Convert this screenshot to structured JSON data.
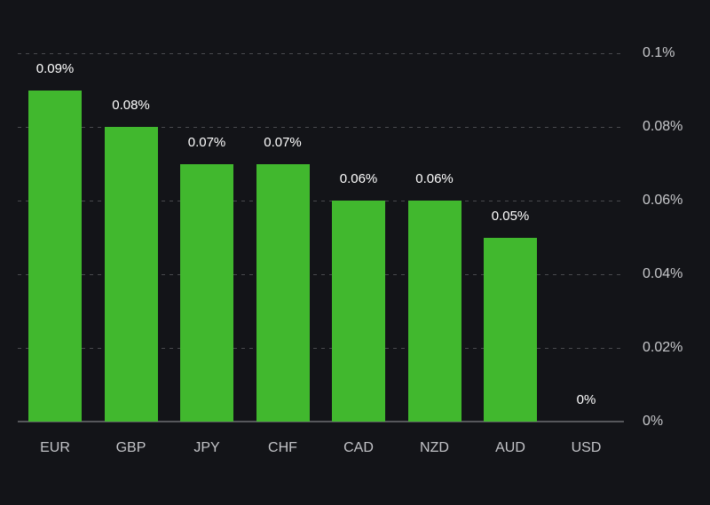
{
  "chart_data": {
    "type": "bar",
    "title": "",
    "xlabel": "",
    "ylabel": "",
    "categories": [
      "EUR",
      "GBP",
      "JPY",
      "CHF",
      "CAD",
      "NZD",
      "AUD",
      "USD"
    ],
    "values": [
      0.09,
      0.08,
      0.07,
      0.07,
      0.06,
      0.06,
      0.05,
      0
    ],
    "value_labels": [
      "0.09%",
      "0.08%",
      "0.07%",
      "0.07%",
      "0.06%",
      "0.06%",
      "0.05%",
      "0%"
    ],
    "y_ticks": [
      {
        "value": 0,
        "label": "0%"
      },
      {
        "value": 0.02,
        "label": "0.02%"
      },
      {
        "value": 0.04,
        "label": "0.04%"
      },
      {
        "value": 0.06,
        "label": "0.06%"
      },
      {
        "value": 0.08,
        "label": "0.08%"
      },
      {
        "value": 0.1,
        "label": "0.1%"
      }
    ],
    "ylim": [
      0,
      0.1
    ],
    "grid": "horizontal-dashed",
    "y_axis_position": "right",
    "legend": "none",
    "colors": {
      "background": "#131418",
      "bar": "#41b82e",
      "value_label": "#ffffff",
      "axis_label": "#c7c8cb",
      "gridline": "#494a4e",
      "baseline": "#56575b"
    }
  }
}
